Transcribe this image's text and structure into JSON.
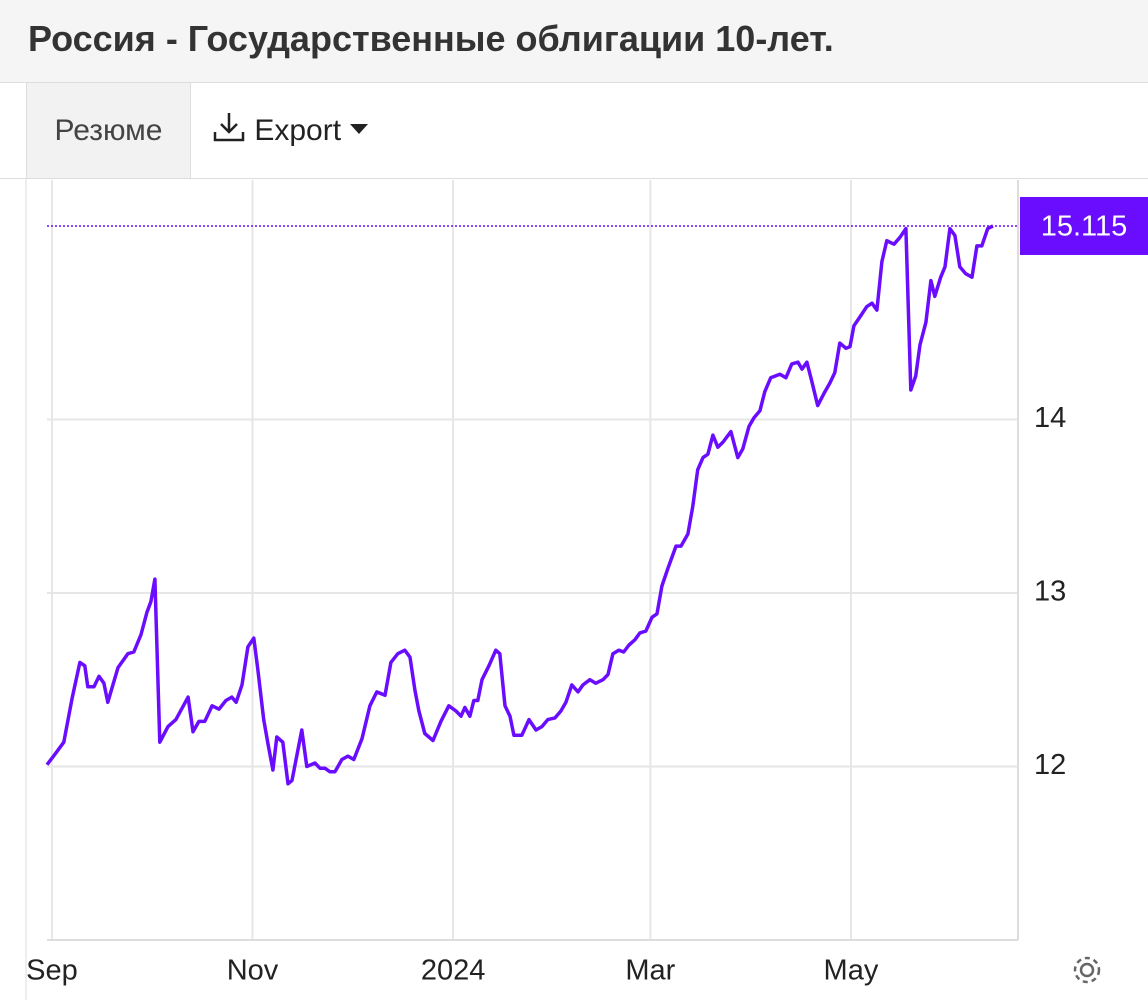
{
  "tabs": [
    "Резюме",
    "Export"
  ],
  "chart_data": {
    "type": "line",
    "title": "Россия - Государственные облигации 10-лет.",
    "color": "#6a0dff",
    "grid": true,
    "x": [
      -1.5,
      0.9,
      3.6,
      6.1,
      8.5,
      10.0,
      10.9,
      12.8,
      14.3,
      15.8,
      17.0,
      20.1,
      23.1,
      24.9,
      27.1,
      28.9,
      30.1,
      31.3,
      32.8,
      35.3,
      37.7,
      41.4,
      42.9,
      44.7,
      46.5,
      48.7,
      50.8,
      52.9,
      54.7,
      56.0,
      57.8,
      59.6,
      61.4,
      62.6,
      64.4,
      65.7,
      67.2,
      68.4,
      70.2,
      71.8,
      73.0,
      76.0,
      77.5,
      80.0,
      81.5,
      83.0,
      84.5,
      86.1,
      88.2,
      90.0,
      91.8,
      94.3,
      96.7,
      98.8,
      101.3,
      103.1,
      105.2,
      107.3,
      108.9,
      110.4,
      111.6,
      113.4,
      115.9,
      118.3,
      120.7,
      122.9,
      124.4,
      125.6,
      127.1,
      128.3,
      129.5,
      130.8,
      132.9,
      135.0,
      136.2,
      137.8,
      139.3,
      140.5,
      142.9,
      145.1,
      147.2,
      149.0,
      150.8,
      153.0,
      154.8,
      156.3,
      158.1,
      160.0,
      161.5,
      163.6,
      165.4,
      167.6,
      169.1,
      170.6,
      172.4,
      173.9,
      175.5,
      177.3,
      178.8,
      180.6,
      182.5,
      184.0,
      185.5,
      187.3,
      189.8,
      191.3,
      193.4,
      194.9,
      196.4,
      198.0,
      199.5,
      201.0,
      202.5,
      204.1,
      206.5,
      208.6,
      210.1,
      212.0,
      213.5,
      215.3,
      216.8,
      218.6,
      221.4,
      223.2,
      225.0,
      226.9,
      228.1,
      229.6,
      231.1,
      232.9,
      234.8,
      236.6,
      238.1,
      239.6,
      241.5,
      242.7,
      243.9,
      245.7,
      247.8,
      249.4,
      250.9,
      252.4,
      253.9,
      256.1,
      257.9,
      259.7,
      261.2,
      262.7,
      264.0,
      265.8,
      267.3,
      268.5,
      270.3,
      271.6,
      273.1,
      274.6,
      276.1,
      277.9,
      279.8,
      281.3,
      282.8,
      284.6,
      286.2
    ],
    "values": [
      12.01,
      12.07,
      12.14,
      12.39,
      12.6,
      12.58,
      12.46,
      12.46,
      12.52,
      12.48,
      12.37,
      12.57,
      12.65,
      12.66,
      12.76,
      12.89,
      12.95,
      13.08,
      12.14,
      12.23,
      12.27,
      12.4,
      12.2,
      12.26,
      12.26,
      12.35,
      12.33,
      12.38,
      12.4,
      12.37,
      12.47,
      12.69,
      12.74,
      12.56,
      12.27,
      12.13,
      11.98,
      12.17,
      12.14,
      11.9,
      11.92,
      12.21,
      12.0,
      12.02,
      11.99,
      11.99,
      11.97,
      11.97,
      12.04,
      12.06,
      12.04,
      12.16,
      12.35,
      12.43,
      12.41,
      12.6,
      12.65,
      12.67,
      12.63,
      12.44,
      12.32,
      12.19,
      12.15,
      12.26,
      12.35,
      12.32,
      12.29,
      12.34,
      12.29,
      12.38,
      12.38,
      12.5,
      12.58,
      12.67,
      12.65,
      12.35,
      12.29,
      12.18,
      12.18,
      12.27,
      12.21,
      12.23,
      12.27,
      12.28,
      12.32,
      12.37,
      12.47,
      12.43,
      12.47,
      12.5,
      12.48,
      12.5,
      12.53,
      12.65,
      12.67,
      12.66,
      12.7,
      12.73,
      12.77,
      12.78,
      12.86,
      12.88,
      13.04,
      13.14,
      13.27,
      13.27,
      13.34,
      13.5,
      13.71,
      13.78,
      13.8,
      13.91,
      13.84,
      13.87,
      13.93,
      13.78,
      13.83,
      13.96,
      14.01,
      14.05,
      14.16,
      14.24,
      14.26,
      14.24,
      14.32,
      14.33,
      14.29,
      14.33,
      14.22,
      14.08,
      14.15,
      14.21,
      14.27,
      14.44,
      14.41,
      14.42,
      14.54,
      14.59,
      14.65,
      14.67,
      14.63,
      14.91,
      15.03,
      15.01,
      15.05,
      15.1,
      14.17,
      14.25,
      14.43,
      14.56,
      14.8,
      14.71,
      14.82,
      14.88,
      15.1,
      15.06,
      14.88,
      14.84,
      14.82,
      15.0,
      15.0,
      15.1,
      15.115
    ],
    "xlim": [
      -1.5,
      293.8
    ],
    "xticks": [
      {
        "value": 0,
        "label": "Sep"
      },
      {
        "value": 61,
        "label": "Nov"
      },
      {
        "value": 122,
        "label": "2024"
      },
      {
        "value": 182,
        "label": "Mar"
      },
      {
        "value": 243,
        "label": "May"
      }
    ],
    "ylim": [
      11,
      15.38
    ],
    "yticks": [
      12,
      13,
      14
    ]
  }
}
